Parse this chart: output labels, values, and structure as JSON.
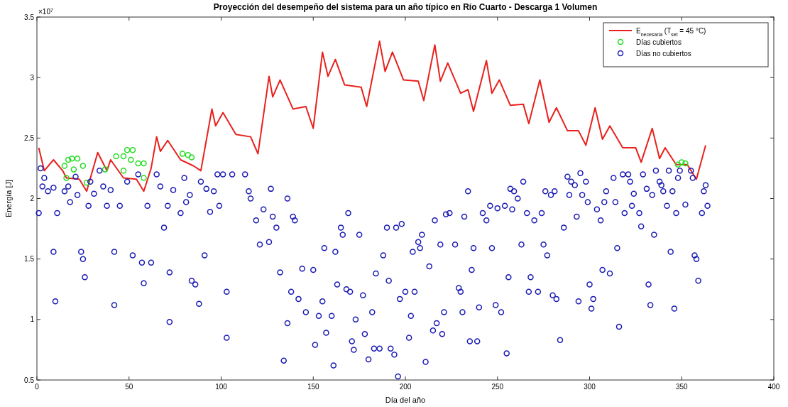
{
  "chart_data": {
    "type": "line",
    "title": "Proyección del desempeño del sistema para un año típico en Río Cuarto - Descarga 1 Volumen",
    "xlabel": "Día del año",
    "ylabel": "Energía [J]",
    "annotations": [
      "×10$^{7}$"
    ],
    "xlim": [
      0,
      400
    ],
    "xticks": [
      0,
      50,
      100,
      150,
      200,
      250,
      300,
      350,
      400
    ],
    "ylim": [
      0.5,
      3.5
    ],
    "yticks": [
      0.5,
      1,
      1.5,
      2,
      2.5,
      3,
      3.5
    ],
    "grid": false,
    "legend": "top right",
    "series": [
      {
        "name": "E$_{necesaria}$ (T$_{set}$ = 45 °C)",
        "color": "#e8211d",
        "marker": "none",
        "x": [
          1,
          4,
          9,
          14,
          16,
          23,
          27,
          33,
          38,
          40,
          47,
          54,
          58,
          62,
          65,
          67,
          71,
          78,
          85,
          89,
          95,
          97,
          101,
          108,
          116,
          120,
          126,
          128,
          132,
          139,
          146,
          150,
          155,
          158,
          162,
          167,
          176,
          179,
          186,
          189,
          193,
          199,
          207,
          210,
          216,
          219,
          223,
          230,
          234,
          237,
          244,
          247,
          251,
          257,
          264,
          267,
          273,
          278,
          282,
          288,
          294,
          298,
          303,
          307,
          311,
          318,
          325,
          328,
          334,
          338,
          341,
          347,
          353,
          358,
          363
        ],
        "values": [
          2.42,
          2.23,
          2.32,
          2.23,
          2.17,
          2.16,
          2.06,
          2.38,
          2.23,
          2.32,
          2.17,
          2.16,
          2.06,
          2.25,
          2.51,
          2.39,
          2.48,
          2.32,
          2.27,
          2.23,
          2.74,
          2.6,
          2.71,
          2.53,
          2.51,
          2.37,
          3.01,
          2.84,
          2.98,
          2.74,
          2.76,
          2.58,
          3.21,
          3.01,
          3.15,
          2.94,
          2.92,
          2.76,
          3.3,
          3.05,
          3.21,
          2.98,
          2.97,
          2.81,
          3.27,
          2.97,
          3.12,
          2.87,
          2.9,
          2.72,
          3.14,
          2.87,
          2.98,
          2.77,
          2.78,
          2.62,
          2.98,
          2.63,
          2.75,
          2.56,
          2.56,
          2.44,
          2.75,
          2.49,
          2.6,
          2.42,
          2.42,
          2.3,
          2.58,
          2.33,
          2.42,
          2.28,
          2.28,
          2.16,
          2.44
        ]
      },
      {
        "name": "Días cubiertos",
        "type": "scatter",
        "color": "#22dd22",
        "marker": "circle",
        "x": [
          15,
          16,
          17,
          19,
          20,
          22,
          25,
          27,
          37,
          43,
          47,
          47,
          49,
          51,
          52,
          55,
          58,
          58,
          79,
          82,
          84,
          348,
          350,
          352
        ],
        "values": [
          2.27,
          2.17,
          2.32,
          2.33,
          2.24,
          2.33,
          2.27,
          2.13,
          2.24,
          2.35,
          2.35,
          2.23,
          2.4,
          2.32,
          2.4,
          2.29,
          2.29,
          2.17,
          2.37,
          2.36,
          2.34,
          2.28,
          2.3,
          2.29
        ]
      },
      {
        "name": "Días no cubiertos",
        "type": "scatter",
        "color": "#1a1ab4",
        "marker": "circle",
        "x": [
          2,
          4,
          3,
          6,
          1,
          9,
          11,
          9,
          10,
          15,
          17,
          18,
          21,
          22,
          24,
          25,
          26,
          28,
          29,
          31,
          34,
          36,
          38,
          40,
          42,
          42,
          45,
          49,
          52,
          55,
          57,
          58,
          60,
          62,
          65,
          67,
          69,
          71,
          72,
          72,
          74,
          78,
          80,
          81,
          83,
          84,
          86,
          88,
          89,
          92,
          91,
          94,
          96,
          98,
          99,
          101,
          103,
          103,
          106,
          113,
          115,
          116,
          119,
          121,
          123,
          126,
          127,
          128,
          130,
          132,
          134,
          136,
          136,
          139,
          140,
          138,
          142,
          144,
          146,
          150,
          151,
          153,
          155,
          156,
          157,
          160,
          161,
          162,
          163,
          165,
          166,
          168,
          169,
          170,
          171,
          172,
          173,
          175,
          177,
          178,
          180,
          182,
          183,
          184,
          186,
          188,
          190,
          191,
          192,
          194,
          195,
          196,
          197,
          198,
          200,
          202,
          203,
          204,
          205,
          207,
          208,
          209,
          211,
          213,
          215,
          216,
          217,
          219,
          220,
          221,
          222,
          224,
          227,
          229,
          230,
          231,
          232,
          234,
          235,
          236,
          237,
          239,
          240,
          242,
          244,
          246,
          247,
          249,
          250,
          252,
          254,
          255,
          256,
          257,
          258,
          259,
          261,
          263,
          264,
          266,
          267,
          268,
          270,
          272,
          274,
          275,
          276,
          277,
          279,
          280,
          281,
          282,
          284,
          286,
          288,
          289,
          290,
          292,
          293,
          294,
          295,
          296,
          298,
          299,
          300,
          301,
          302,
          304,
          306,
          307,
          308,
          309,
          311,
          313,
          314,
          315,
          316,
          318,
          319,
          321,
          322,
          323,
          324,
          327,
          328,
          329,
          331,
          332,
          333,
          334,
          335,
          336,
          338,
          339,
          340,
          342,
          343,
          344,
          345,
          346,
          347,
          348,
          349,
          352,
          355,
          356,
          357,
          358,
          359,
          361,
          362,
          363,
          364
        ],
        "values": [
          2.25,
          2.17,
          2.1,
          2.06,
          1.88,
          2.09,
          1.88,
          1.56,
          1.15,
          2.06,
          2.1,
          1.97,
          2.18,
          2.03,
          1.56,
          1.5,
          1.35,
          1.94,
          2.14,
          2.04,
          2.23,
          2.1,
          1.94,
          2.07,
          1.56,
          1.12,
          1.94,
          2.14,
          1.53,
          2.2,
          1.47,
          1.3,
          1.94,
          1.47,
          2.2,
          2.1,
          1.76,
          1.94,
          1.39,
          0.98,
          2.07,
          1.88,
          2.17,
          1.97,
          2.03,
          1.32,
          1.29,
          1.13,
          2.14,
          2.08,
          1.53,
          1.89,
          2.06,
          2.2,
          1.94,
          2.2,
          1.23,
          0.85,
          2.2,
          2.2,
          2.06,
          2.0,
          1.82,
          1.62,
          1.91,
          1.64,
          2.08,
          1.85,
          1.76,
          1.39,
          0.66,
          0.97,
          2.0,
          1.85,
          1.82,
          1.23,
          1.17,
          1.42,
          1.06,
          1.41,
          0.79,
          1.03,
          1.15,
          1.59,
          0.89,
          1.03,
          0.62,
          1.56,
          1.29,
          1.76,
          1.7,
          1.25,
          1.88,
          1.23,
          0.82,
          0.75,
          1.0,
          1.7,
          1.2,
          0.88,
          0.67,
          1.06,
          0.76,
          1.38,
          0.76,
          1.53,
          1.76,
          1.32,
          0.76,
          0.71,
          1.76,
          0.53,
          1.17,
          1.79,
          1.23,
          0.85,
          1.03,
          1.56,
          1.23,
          1.64,
          1.59,
          1.7,
          0.65,
          1.44,
          0.91,
          1.82,
          0.97,
          1.62,
          0.88,
          1.06,
          1.87,
          1.88,
          1.62,
          1.26,
          1.23,
          1.06,
          1.85,
          2.06,
          0.82,
          1.41,
          1.59,
          0.82,
          1.1,
          1.88,
          1.82,
          1.94,
          1.59,
          1.12,
          1.92,
          1.06,
          1.94,
          0.72,
          1.35,
          2.08,
          1.91,
          2.06,
          2.0,
          1.62,
          2.14,
          1.88,
          1.23,
          1.35,
          1.82,
          1.23,
          1.88,
          1.62,
          2.06,
          1.53,
          2.03,
          1.2,
          2.06,
          1.17,
          0.83,
          1.76,
          2.18,
          2.03,
          2.14,
          2.11,
          1.85,
          1.15,
          2.21,
          2.03,
          2.14,
          1.97,
          1.29,
          1.09,
          1.17,
          1.91,
          1.82,
          1.41,
          1.97,
          2.06,
          1.38,
          2.17,
          1.97,
          1.59,
          0.94,
          2.2,
          1.88,
          2.2,
          2.14,
          1.94,
          2.04,
          1.88,
          1.77,
          2.2,
          2.08,
          1.29,
          1.12,
          2.03,
          1.7,
          2.23,
          2.14,
          2.11,
          2.06,
          1.94,
          2.23,
          1.56,
          2.06,
          1.09,
          1.88,
          2.17,
          2.23,
          1.95,
          2.23,
          2.17,
          1.53,
          1.5,
          1.32,
          1.88,
          2.06,
          2.11,
          1.94
        ]
      }
    ]
  }
}
